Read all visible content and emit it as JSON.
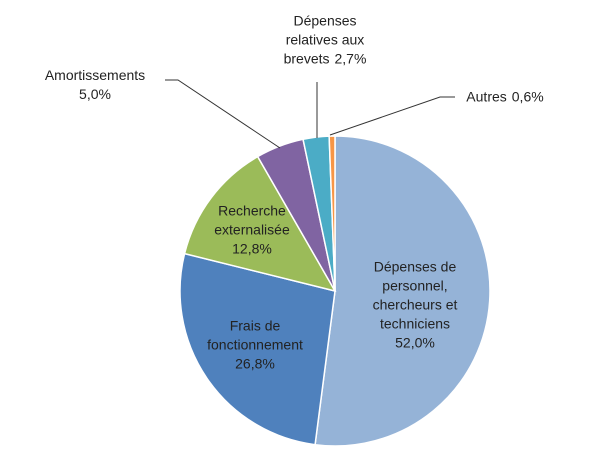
{
  "chart_data": {
    "type": "pie",
    "categories": [
      "Dépenses de\npersonnel,\nchercheurs et\ntechniciens",
      "Frais de\nfonctionnement",
      "Recherche\nexternalisée",
      "Amortissements",
      "Dépenses\nrelatives aux\nbrevets",
      "Autres"
    ],
    "values": [
      52.0,
      26.8,
      12.8,
      5.0,
      2.7,
      0.6
    ],
    "value_labels": [
      "52,0%",
      "26,8%",
      "12,8%",
      "5,0%",
      "2,7%",
      "0,6%"
    ],
    "colors": [
      "#95b3d7",
      "#4f81bd",
      "#9bbb59",
      "#8064a2",
      "#4bacc6",
      "#f79646"
    ]
  }
}
